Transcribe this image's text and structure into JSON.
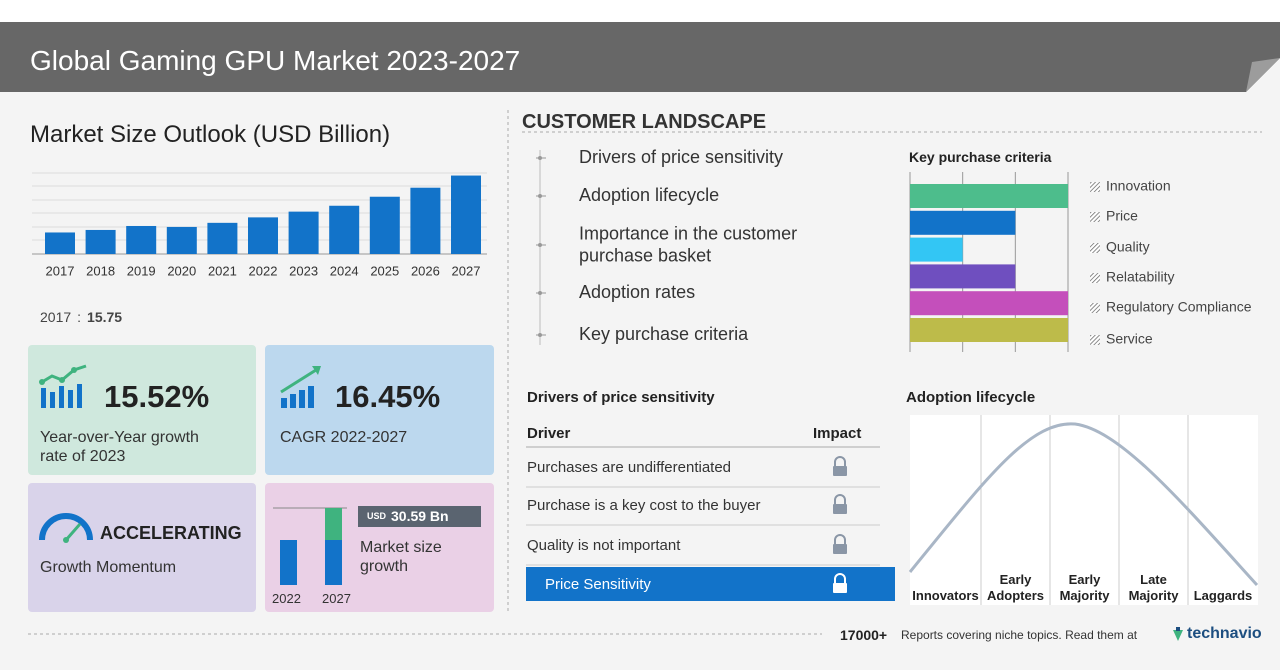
{
  "header": {
    "title": "Global Gaming GPU Market 2023-2027"
  },
  "market_size": {
    "chart_data": {
      "type": "bar",
      "title": "Market Size Outlook (USD Billion)",
      "categories": [
        "2017",
        "2018",
        "2019",
        "2020",
        "2021",
        "2022",
        "2023",
        "2024",
        "2025",
        "2026",
        "2027"
      ],
      "values": [
        15.75,
        17.6,
        20.5,
        19.8,
        22.8,
        26.8,
        31.0,
        35.3,
        41.9,
        48.5,
        57.4
      ],
      "color": "#1273c9",
      "ylim": [
        0,
        60
      ]
    }
  },
  "kpis": [
    {
      "value": "15.52%",
      "label": "Year-over-Year growth rate of 2023"
    },
    {
      "value": "16.45%",
      "label": "CAGR 2022-2027"
    },
    {
      "value": "ACCELERATING",
      "label": "Growth Momentum"
    },
    {
      "currency": "USD",
      "value": "30.59 Bn",
      "label": "Market size growth",
      "years": [
        "2022",
        "2027"
      ]
    }
  ],
  "customer_landscape": {
    "title": "CUSTOMER LANDSCAPE",
    "items": [
      "Drivers of price sensitivity",
      "Adoption lifecycle",
      "Importance in the customer purchase basket",
      "Adoption rates",
      "Key purchase criteria"
    ]
  },
  "key_purchase_criteria": {
    "chart_data": {
      "type": "bar",
      "orientation": "horizontal",
      "title": "Key purchase criteria",
      "categories": [
        "Innovation",
        "Price",
        "Quality",
        "Relatability",
        "Regulatory Compliance",
        "Service"
      ],
      "values": [
        3,
        2,
        1,
        2,
        3,
        3
      ],
      "colors": [
        "#4dbd8c",
        "#1273c9",
        "#33c6f4",
        "#6f4fbf",
        "#c44fbb",
        "#bdbb4a"
      ],
      "xlim": [
        0,
        3
      ],
      "xticks": [
        0,
        1,
        2,
        3
      ],
      "grid": true
    }
  },
  "price_sensitivity": {
    "title": "Drivers of price sensitivity",
    "columns": [
      "Driver",
      "Impact"
    ],
    "rows": [
      "Purchases are undifferentiated",
      "Purchase is a key cost to the buyer",
      "Quality is not important",
      "Price Sensitivity"
    ],
    "highlighted_row": 3
  },
  "adoption_lifecycle": {
    "title": "Adoption lifecycle",
    "stages": [
      "Innovators",
      "Early Adopters",
      "Early Majority",
      "Late Majority",
      "Laggards"
    ]
  },
  "footer": {
    "count": "17000+",
    "text": "Reports covering niche topics. Read them at",
    "brand": "technavio"
  }
}
